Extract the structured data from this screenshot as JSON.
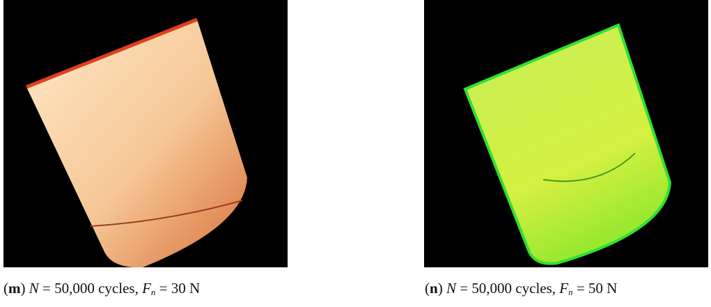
{
  "panels": [
    {
      "caption": [
        "(",
        "m",
        ") ",
        "N",
        " = 50,000 cycles, ",
        "F",
        "n",
        " = 30 N"
      ]
    },
    {
      "caption": [
        "(",
        "n",
        ") ",
        "N",
        " = 50,000 cycles, ",
        "F",
        "n",
        " = 50 N"
      ]
    }
  ]
}
